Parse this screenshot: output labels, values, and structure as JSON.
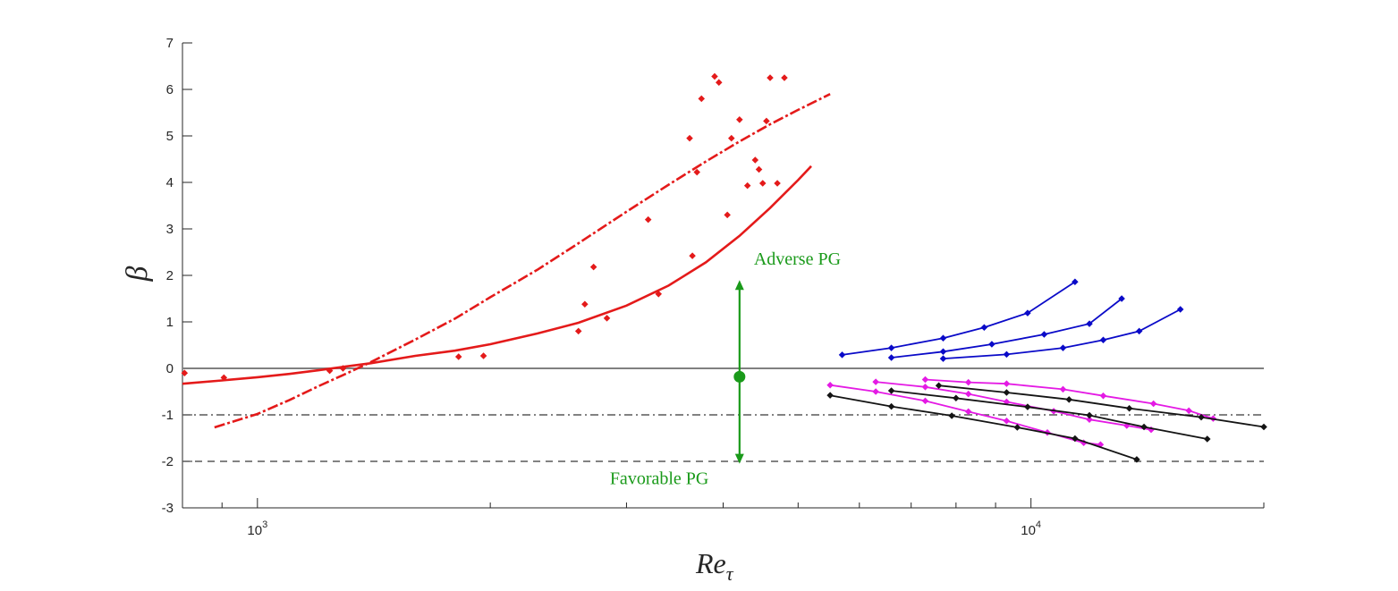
{
  "chart_data": {
    "type": "scatter",
    "title": "",
    "xlabel": "Re",
    "xlabel_subscript": "τ",
    "ylabel": "β",
    "xscale": "log",
    "xlim": [
      800,
      20000
    ],
    "ylim": [
      -3,
      7
    ],
    "grid": false,
    "x_ticks": [
      {
        "value": 1000,
        "base": "10",
        "exp": "3"
      },
      {
        "value": 10000,
        "base": "10",
        "exp": "4"
      }
    ],
    "y_ticks": [
      "-3",
      "-2",
      "-1",
      "0",
      "1",
      "2",
      "3",
      "4",
      "5",
      "6",
      "7"
    ],
    "reference_lines": [
      {
        "y": 0,
        "style": "solid",
        "color": "#808080"
      },
      {
        "y": -1,
        "style": "dashdot",
        "color": "#595959"
      },
      {
        "y": -2,
        "style": "dashed",
        "color": "#595959"
      }
    ],
    "annotations": {
      "adverse": {
        "text": "Adverse PG",
        "color": "#1a9a1a"
      },
      "favorable": {
        "text": "Favorable PG",
        "color": "#1a9a1a"
      },
      "arrow": {
        "x": 4200,
        "y_center": -0.18,
        "y_top": 1.9,
        "y_bottom": -2.05,
        "color": "#1a9a1a"
      }
    },
    "series": [
      {
        "kind": "markers",
        "color": "#e41a1a",
        "x": [
          805,
          905,
          1240,
          1290,
          1820,
          1960,
          2600,
          2650,
          2720,
          2830,
          3200,
          3300,
          3620,
          3650,
          3700,
          3750,
          3900,
          3950,
          4050,
          4100,
          4200,
          4300,
          4400,
          4450,
          4500,
          4550,
          4600,
          4700,
          4800
        ],
        "y": [
          -0.1,
          -0.2,
          -0.05,
          0.0,
          0.25,
          0.27,
          0.8,
          1.38,
          2.18,
          1.08,
          3.2,
          1.6,
          4.95,
          2.42,
          4.22,
          5.8,
          6.28,
          6.15,
          3.3,
          4.95,
          5.35,
          3.93,
          4.48,
          4.28,
          3.98,
          5.32,
          6.25,
          3.98,
          6.25
        ]
      },
      {
        "kind": "curve",
        "style": "solid",
        "color": "#e41a1a",
        "x": [
          800,
          900,
          1000,
          1100,
          1200,
          1300,
          1400,
          1600,
          1800,
          2000,
          2300,
          2600,
          3000,
          3400,
          3800,
          4200,
          4600,
          5000,
          5200
        ],
        "y": [
          -0.33,
          -0.26,
          -0.19,
          -0.12,
          -0.04,
          0.04,
          0.11,
          0.27,
          0.38,
          0.52,
          0.75,
          0.98,
          1.35,
          1.78,
          2.28,
          2.85,
          3.45,
          4.05,
          4.35
        ]
      },
      {
        "kind": "curve",
        "style": "dashdot",
        "color": "#e41a1a",
        "x": [
          880,
          1000,
          1100,
          1200,
          1300,
          1400,
          1600,
          1800,
          2000,
          2300,
          2600,
          3000,
          3400,
          3800,
          4200,
          4600,
          5000,
          5500
        ],
        "y": [
          -1.27,
          -0.98,
          -0.68,
          -0.38,
          -0.12,
          0.13,
          0.62,
          1.07,
          1.53,
          2.12,
          2.69,
          3.37,
          3.95,
          4.45,
          4.88,
          5.25,
          5.56,
          5.9
        ]
      },
      {
        "kind": "line-markers",
        "color": "#0a0ac8",
        "x": [
          5700,
          6600,
          7700,
          8700,
          9900,
          11400
        ],
        "y": [
          0.29,
          0.44,
          0.65,
          0.88,
          1.19,
          1.86
        ]
      },
      {
        "kind": "line-markers",
        "color": "#0a0ac8",
        "x": [
          6600,
          7700,
          8900,
          10400,
          11900,
          13100
        ],
        "y": [
          0.23,
          0.36,
          0.52,
          0.73,
          0.96,
          1.5
        ]
      },
      {
        "kind": "line-markers",
        "color": "#0a0ac8",
        "x": [
          7700,
          9300,
          11000,
          12400,
          13800,
          15600
        ],
        "y": [
          0.21,
          0.3,
          0.44,
          0.61,
          0.8,
          1.27
        ]
      },
      {
        "kind": "line-markers",
        "color": "#e41ae4",
        "x": [
          5500,
          6300,
          7300,
          8300,
          9300,
          10500,
          11700,
          12300
        ],
        "y": [
          -0.36,
          -0.5,
          -0.7,
          -0.93,
          -1.13,
          -1.38,
          -1.6,
          -1.64
        ]
      },
      {
        "kind": "line-markers",
        "color": "#e41ae4",
        "x": [
          6300,
          7300,
          8300,
          9300,
          10700,
          11900,
          13300,
          14300
        ],
        "y": [
          -0.29,
          -0.4,
          -0.55,
          -0.72,
          -0.92,
          -1.1,
          -1.23,
          -1.32
        ]
      },
      {
        "kind": "line-markers",
        "color": "#e41ae4",
        "x": [
          7300,
          8300,
          9300,
          11000,
          12400,
          14400,
          16000,
          17200
        ],
        "y": [
          -0.24,
          -0.3,
          -0.33,
          -0.45,
          -0.59,
          -0.76,
          -0.91,
          -1.08
        ]
      },
      {
        "kind": "line-markers",
        "color": "#141414",
        "x": [
          5500,
          6600,
          7900,
          9600,
          11400,
          13700
        ],
        "y": [
          -0.58,
          -0.82,
          -1.02,
          -1.27,
          -1.51,
          -1.96
        ]
      },
      {
        "kind": "line-markers",
        "color": "#141414",
        "x": [
          6600,
          8000,
          9900,
          11900,
          14000,
          16900
        ],
        "y": [
          -0.48,
          -0.64,
          -0.83,
          -1.01,
          -1.26,
          -1.52
        ]
      },
      {
        "kind": "line-markers",
        "color": "#141414",
        "x": [
          7600,
          9300,
          11200,
          13400,
          16600,
          20000
        ],
        "y": [
          -0.37,
          -0.52,
          -0.67,
          -0.86,
          -1.05,
          -1.26
        ]
      }
    ]
  }
}
